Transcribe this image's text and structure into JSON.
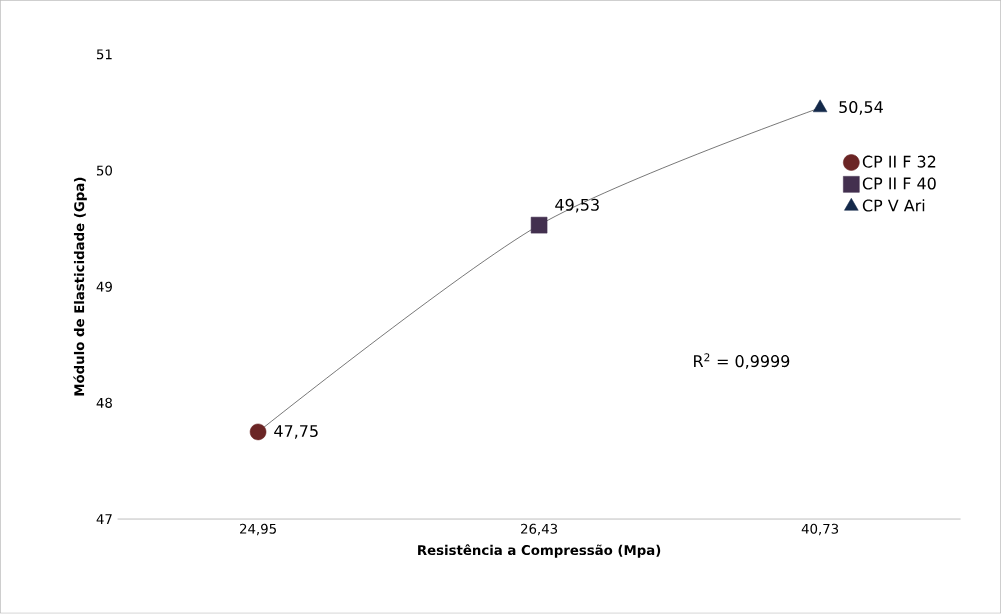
{
  "chart_data": {
    "type": "scatter",
    "xlabel": "Resistência a Compressão (Mpa)",
    "ylabel": "Módulo de Elasticidade (Gpa)",
    "categories": [
      "24,95",
      "26,43",
      "40,73"
    ],
    "series": [
      {
        "type": "line",
        "color": "#000000",
        "x": [
          "24,95",
          "26,43",
          "40,73"
        ],
        "values": [
          47.75,
          49.53,
          50.54
        ],
        "marker": "none"
      },
      {
        "name": "CP II F 32",
        "color": "#6b2525",
        "x": [
          "24,95"
        ],
        "values": [
          47.75
        ],
        "value_labels": [
          "47,75"
        ],
        "marker": "circle"
      },
      {
        "name": "CP II F 40",
        "color": "#43304f",
        "x": [
          "26,43"
        ],
        "values": [
          49.53
        ],
        "value_labels": [
          "49,53"
        ],
        "marker": "square"
      },
      {
        "name": "CP V Ari",
        "color": "#14294a",
        "x": [
          "40,73"
        ],
        "values": [
          50.54
        ],
        "value_labels": [
          "50,54"
        ],
        "marker": "triangle"
      }
    ],
    "ylim": [
      47,
      51
    ],
    "yticks": [
      47,
      48,
      49,
      50,
      51
    ],
    "legend": "right",
    "grid": false,
    "annotations": [
      "R$^{2}$ = 0,9999"
    ]
  }
}
